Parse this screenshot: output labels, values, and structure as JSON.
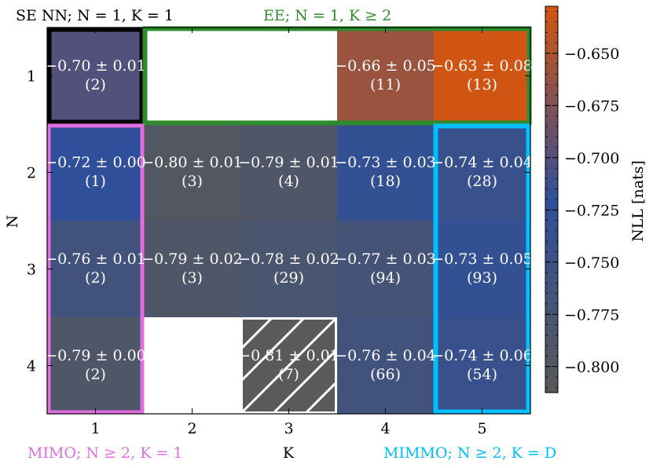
{
  "chart_data": {
    "type": "heatmap",
    "xlabel": "K",
    "ylabel": "N",
    "x_ticks": [
      "1",
      "2",
      "3",
      "4",
      "5"
    ],
    "y_ticks": [
      "1",
      "2",
      "3",
      "4"
    ],
    "cells": [
      {
        "N": 1,
        "K": 1,
        "value": -0.7,
        "err": "0.01",
        "count": "(2)",
        "mean": "−0.70",
        "label": "−0.70 ± 0.01"
      },
      {
        "N": 1,
        "K": 4,
        "value": -0.66,
        "err": "0.05",
        "count": "(11)",
        "label": "−0.66 ± 0.05"
      },
      {
        "N": 1,
        "K": 5,
        "value": -0.63,
        "err": "0.08",
        "count": "(13)",
        "label": "−0.63 ± 0.08"
      },
      {
        "N": 2,
        "K": 1,
        "value": -0.72,
        "err": "0.00",
        "count": "(1)",
        "label": "−0.72 ± 0.00"
      },
      {
        "N": 2,
        "K": 2,
        "value": -0.8,
        "err": "0.01",
        "count": "(3)",
        "label": "−0.80 ± 0.01"
      },
      {
        "N": 2,
        "K": 3,
        "value": -0.79,
        "err": "0.01",
        "count": "(4)",
        "label": "−0.79 ± 0.01"
      },
      {
        "N": 2,
        "K": 4,
        "value": -0.73,
        "err": "0.03",
        "count": "(18)",
        "label": "−0.73 ± 0.03"
      },
      {
        "N": 2,
        "K": 5,
        "value": -0.74,
        "err": "0.04",
        "count": "(28)",
        "label": "−0.74 ± 0.04"
      },
      {
        "N": 3,
        "K": 1,
        "value": -0.76,
        "err": "0.01",
        "count": "(2)",
        "label": "−0.76 ± 0.01"
      },
      {
        "N": 3,
        "K": 2,
        "value": -0.79,
        "err": "0.02",
        "count": "(3)",
        "label": "−0.79 ± 0.02"
      },
      {
        "N": 3,
        "K": 3,
        "value": -0.78,
        "err": "0.02",
        "count": "(29)",
        "label": "−0.78 ± 0.02"
      },
      {
        "N": 3,
        "K": 4,
        "value": -0.77,
        "err": "0.03",
        "count": "(94)",
        "label": "−0.77 ± 0.03"
      },
      {
        "N": 3,
        "K": 5,
        "value": -0.73,
        "err": "0.05",
        "count": "(93)",
        "label": "−0.73 ± 0.05"
      },
      {
        "N": 4,
        "K": 1,
        "value": -0.79,
        "err": "0.00",
        "count": "(2)",
        "label": "−0.79 ± 0.00"
      },
      {
        "N": 4,
        "K": 3,
        "value": -0.81,
        "err": "0.01",
        "count": "(7)",
        "label": "−0.81 ± 0.01",
        "hatched": true
      },
      {
        "N": 4,
        "K": 4,
        "value": -0.76,
        "err": "0.04",
        "count": "(66)",
        "label": "−0.76 ± 0.04"
      },
      {
        "N": 4,
        "K": 5,
        "value": -0.74,
        "err": "0.06",
        "count": "(54)",
        "label": "−0.74 ± 0.06"
      }
    ],
    "colorbar": {
      "label": "NLL [nats]",
      "range": [
        -0.8125,
        -0.6275
      ],
      "ticks": [
        -0.65,
        -0.675,
        -0.7,
        -0.725,
        -0.75,
        -0.775,
        -0.8
      ],
      "tick_labels": [
        "−0.650",
        "−0.675",
        "−0.700",
        "−0.725",
        "−0.750",
        "−0.775",
        "−0.800"
      ]
    },
    "regions": [
      {
        "id": "se-nn",
        "text": "SE NN; N = 1, K = 1",
        "color": "#000000"
      },
      {
        "id": "ee",
        "text": "EE; N = 1, K ≥ 2",
        "color": "#2e8b2e"
      },
      {
        "id": "mimo",
        "text": "MIMO; N ≥ 2, K = 1",
        "color": "#e06ee0"
      },
      {
        "id": "mimmo",
        "text": "MIMMO; N ≥ 2, K = D",
        "color": "#00bfff"
      }
    ]
  }
}
